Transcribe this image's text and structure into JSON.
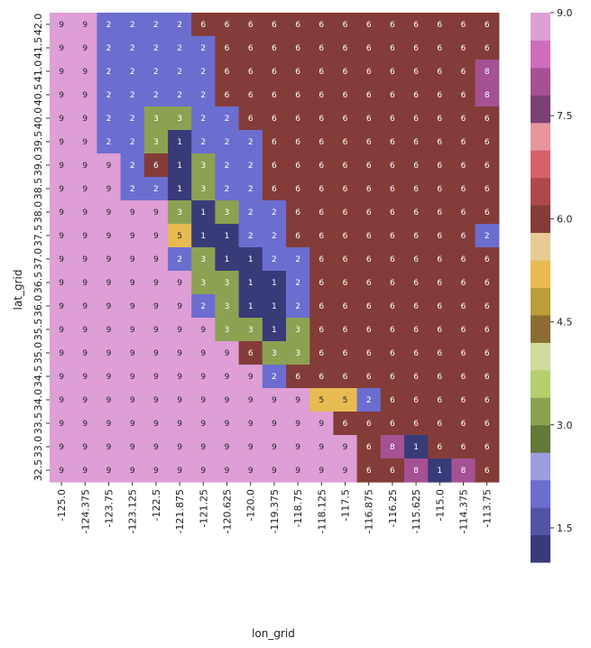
{
  "chart_data": {
    "type": "heatmap",
    "xlabel": "lon_grid",
    "ylabel": "lat_grid",
    "x_ticks": [
      "-125.0",
      "-124.375",
      "-123.75",
      "-123.125",
      "-122.5",
      "-121.875",
      "-121.25",
      "-120.625",
      "-120.0",
      "-119.375",
      "-118.75",
      "-118.125",
      "-117.5",
      "-116.875",
      "-116.25",
      "-115.625",
      "-115.0",
      "-114.375",
      "-113.75"
    ],
    "y_ticks": [
      "42.0",
      "41.5",
      "41.0",
      "40.5",
      "40.0",
      "39.5",
      "39.0",
      "38.5",
      "38.0",
      "37.5",
      "37.0",
      "36.5",
      "36.0",
      "35.5",
      "35.0",
      "34.5",
      "34.0",
      "33.5",
      "33.0",
      "32.5"
    ],
    "values": [
      [
        9,
        9,
        2,
        2,
        2,
        2,
        6,
        6,
        6,
        6,
        6,
        6,
        6,
        6,
        6,
        6,
        6,
        6,
        6
      ],
      [
        9,
        9,
        2,
        2,
        2,
        2,
        2,
        6,
        6,
        6,
        6,
        6,
        6,
        6,
        6,
        6,
        6,
        6,
        6
      ],
      [
        9,
        9,
        2,
        2,
        2,
        2,
        2,
        6,
        6,
        6,
        6,
        6,
        6,
        6,
        6,
        6,
        6,
        6,
        8
      ],
      [
        9,
        9,
        2,
        2,
        2,
        2,
        2,
        6,
        6,
        6,
        6,
        6,
        6,
        6,
        6,
        6,
        6,
        6,
        8
      ],
      [
        9,
        9,
        2,
        2,
        3,
        3,
        2,
        2,
        6,
        6,
        6,
        6,
        6,
        6,
        6,
        6,
        6,
        6,
        6
      ],
      [
        9,
        9,
        2,
        2,
        3,
        1,
        2,
        2,
        2,
        6,
        6,
        6,
        6,
        6,
        6,
        6,
        6,
        6,
        6
      ],
      [
        9,
        9,
        9,
        2,
        6,
        1,
        3,
        2,
        2,
        6,
        6,
        6,
        6,
        6,
        6,
        6,
        6,
        6,
        6
      ],
      [
        9,
        9,
        9,
        2,
        2,
        1,
        3,
        2,
        2,
        6,
        6,
        6,
        6,
        6,
        6,
        6,
        6,
        6,
        6
      ],
      [
        9,
        9,
        9,
        9,
        9,
        3,
        1,
        3,
        2,
        2,
        6,
        6,
        6,
        6,
        6,
        6,
        6,
        6,
        6
      ],
      [
        9,
        9,
        9,
        9,
        9,
        5,
        1,
        1,
        2,
        2,
        6,
        6,
        6,
        6,
        6,
        6,
        6,
        6,
        2
      ],
      [
        9,
        9,
        9,
        9,
        9,
        2,
        3,
        1,
        1,
        2,
        2,
        6,
        6,
        6,
        6,
        6,
        6,
        6,
        6
      ],
      [
        9,
        9,
        9,
        9,
        9,
        9,
        3,
        3,
        1,
        1,
        2,
        6,
        6,
        6,
        6,
        6,
        6,
        6,
        6
      ],
      [
        9,
        9,
        9,
        9,
        9,
        9,
        2,
        3,
        1,
        1,
        2,
        6,
        6,
        6,
        6,
        6,
        6,
        6,
        6
      ],
      [
        9,
        9,
        9,
        9,
        9,
        9,
        9,
        3,
        3,
        1,
        3,
        6,
        6,
        6,
        6,
        6,
        6,
        6,
        6
      ],
      [
        9,
        9,
        9,
        9,
        9,
        9,
        9,
        9,
        6,
        3,
        3,
        6,
        6,
        6,
        6,
        6,
        6,
        6,
        6
      ],
      [
        9,
        9,
        9,
        9,
        9,
        9,
        9,
        9,
        9,
        2,
        6,
        6,
        6,
        6,
        6,
        6,
        6,
        6,
        6
      ],
      [
        9,
        9,
        9,
        9,
        9,
        9,
        9,
        9,
        9,
        9,
        9,
        5,
        5,
        2,
        6,
        6,
        6,
        6,
        6
      ],
      [
        9,
        9,
        9,
        9,
        9,
        9,
        9,
        9,
        9,
        9,
        9,
        9,
        6,
        6,
        6,
        6,
        6,
        6,
        6
      ],
      [
        9,
        9,
        9,
        9,
        9,
        9,
        9,
        9,
        9,
        9,
        9,
        9,
        9,
        6,
        8,
        1,
        6,
        6,
        6
      ],
      [
        9,
        9,
        9,
        9,
        9,
        9,
        9,
        9,
        9,
        9,
        9,
        9,
        9,
        6,
        6,
        8,
        1,
        8,
        6
      ]
    ],
    "value_colors": {
      "1": "#393b79",
      "2": "#6b6ecf",
      "3": "#8ca252",
      "5": "#e7ba52",
      "6": "#843c39",
      "8": "#a55194",
      "9": "#de9ed6"
    },
    "colorbar": {
      "range": [
        1,
        9
      ],
      "ticks": [
        "1.5",
        "3.0",
        "4.5",
        "6.0",
        "7.5",
        "9.0"
      ],
      "colors": [
        "#393b79",
        "#5254a3",
        "#6b6ecf",
        "#9c9ede",
        "#637939",
        "#8ca252",
        "#b5cf6b",
        "#cedb9c",
        "#8c6d31",
        "#bd9e39",
        "#e7ba52",
        "#e7cb94",
        "#843c39",
        "#ad494a",
        "#d6616b",
        "#e7969c",
        "#7b4173",
        "#a55194",
        "#ce6dbd",
        "#de9ed6"
      ]
    }
  }
}
